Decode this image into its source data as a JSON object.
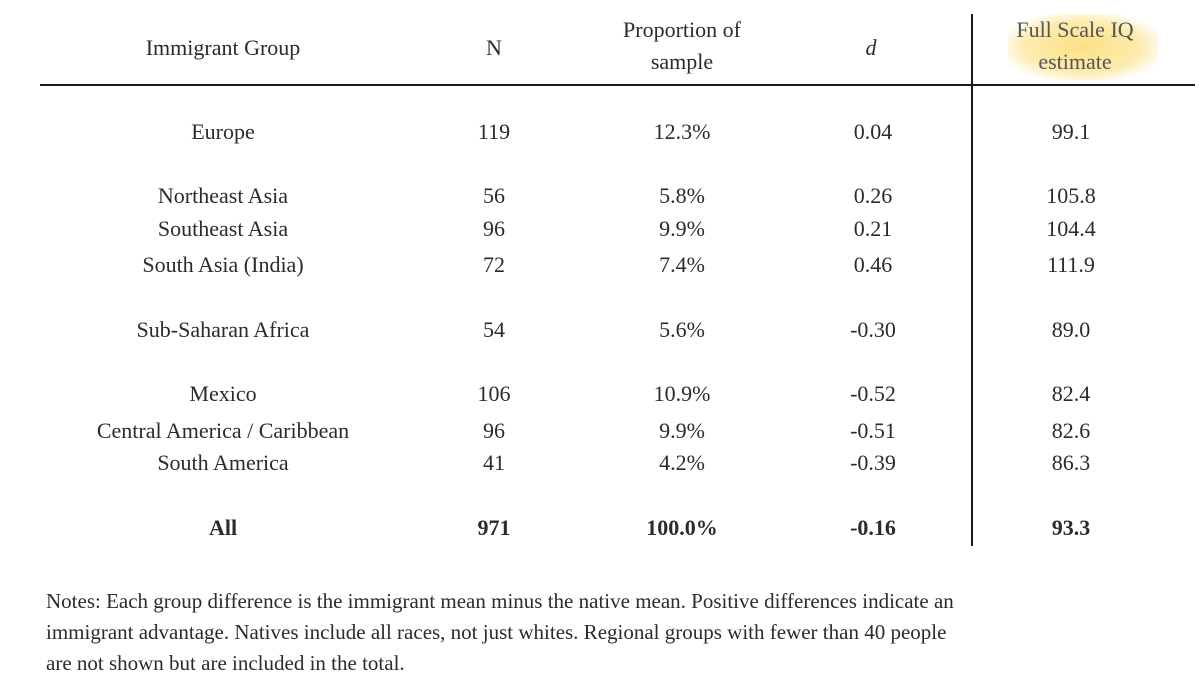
{
  "table": {
    "headers": {
      "group": "Immigrant Group",
      "n": "N",
      "proportion_line1": "Proportion of",
      "proportion_line2": "sample",
      "d": "d",
      "iq_line1": "Full Scale IQ",
      "iq_line2": "estimate"
    },
    "rows": [
      {
        "group": "Europe",
        "n": "119",
        "proportion": "12.3%",
        "d": "0.04",
        "iq": "99.1"
      },
      {
        "group": "Northeast Asia",
        "n": "56",
        "proportion": "5.8%",
        "d": "0.26",
        "iq": "105.8"
      },
      {
        "group": "Southeast Asia",
        "n": "96",
        "proportion": "9.9%",
        "d": "0.21",
        "iq": "104.4"
      },
      {
        "group": "South Asia (India)",
        "n": "72",
        "proportion": "7.4%",
        "d": "0.46",
        "iq": "111.9"
      },
      {
        "group": "Sub-Saharan Africa",
        "n": "54",
        "proportion": "5.6%",
        "d": "-0.30",
        "iq": "89.0"
      },
      {
        "group": "Mexico",
        "n": "106",
        "proportion": "10.9%",
        "d": "-0.52",
        "iq": "82.4"
      },
      {
        "group": "Central America / Caribbean",
        "n": "96",
        "proportion": "9.9%",
        "d": "-0.51",
        "iq": "82.6"
      },
      {
        "group": "South America",
        "n": "41",
        "proportion": "4.2%",
        "d": "-0.39",
        "iq": "86.3"
      }
    ],
    "total": {
      "group": "All",
      "n": "971",
      "proportion": "100.0%",
      "d": "-0.16",
      "iq": "93.3"
    }
  },
  "notes": {
    "line1": "Notes: Each group difference is the immigrant mean minus the native mean.  Positive differences indicate an",
    "line2": "immigrant advantage.  Natives include all races, not just whites.  Regional groups with fewer than 40 people",
    "line3": "are not shown but are included in the total."
  },
  "colors": {
    "highlight": "#fad65a",
    "text": "#2b2b2b",
    "rules": "#1a1a1a"
  }
}
